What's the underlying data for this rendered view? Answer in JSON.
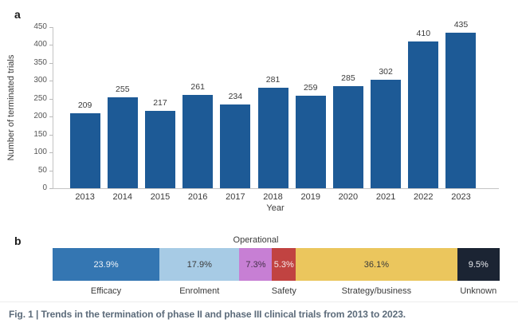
{
  "panel_a": {
    "label": "a",
    "ylabel": "Number of terminated trials",
    "xlabel": "Year"
  },
  "panel_b": {
    "label": "b"
  },
  "caption": "Fig. 1 | Trends in the termination of phase II and phase III clinical trials from 2013 to 2023.",
  "colors": {
    "bar_blue": "#1d5a96",
    "axis_line": "#c4c4c4",
    "tick_text": "#565656",
    "value_text": "#3a3a3a",
    "caption_text": "#5c6b7a"
  },
  "chart_data": [
    {
      "type": "bar",
      "title": "",
      "categories": [
        "2013",
        "2014",
        "2015",
        "2016",
        "2017",
        "2018",
        "2019",
        "2020",
        "2021",
        "2022",
        "2023"
      ],
      "values": [
        209,
        255,
        217,
        261,
        234,
        281,
        259,
        285,
        302,
        410,
        435
      ],
      "xlabel": "Year",
      "ylabel": "Number of terminated trials",
      "ylim": [
        0,
        450
      ],
      "ytick_step": 50,
      "grid": false,
      "legend": "none",
      "bar_color": "#1d5a96"
    },
    {
      "type": "bar",
      "subtype": "horizontal-stacked",
      "title": "",
      "unit": "%",
      "segments": [
        {
          "label": "Efficacy",
          "value": 23.9,
          "display": "23.9%",
          "color": "#3476b2",
          "text_color": "#eef3f8",
          "label_side": "below"
        },
        {
          "label": "Enrolment",
          "value": 17.9,
          "display": "17.9%",
          "color": "#a7cbe5",
          "text_color": "#3a3a3a",
          "label_side": "below"
        },
        {
          "label": "Operational",
          "value": 7.3,
          "display": "7.3%",
          "color": "#c77fd4",
          "text_color": "#45304a",
          "label_side": "above"
        },
        {
          "label": "Safety",
          "value": 5.3,
          "display": "5.3%",
          "color": "#c14341",
          "text_color": "#f6eaea",
          "label_side": "below"
        },
        {
          "label": "Strategy/business",
          "value": 36.1,
          "display": "36.1%",
          "color": "#ebc65d",
          "text_color": "#3a3a3a",
          "label_side": "below"
        },
        {
          "label": "Unknown",
          "value": 9.5,
          "display": "9.5%",
          "color": "#1b2433",
          "text_color": "#e8eaee",
          "label_side": "below"
        }
      ]
    }
  ]
}
